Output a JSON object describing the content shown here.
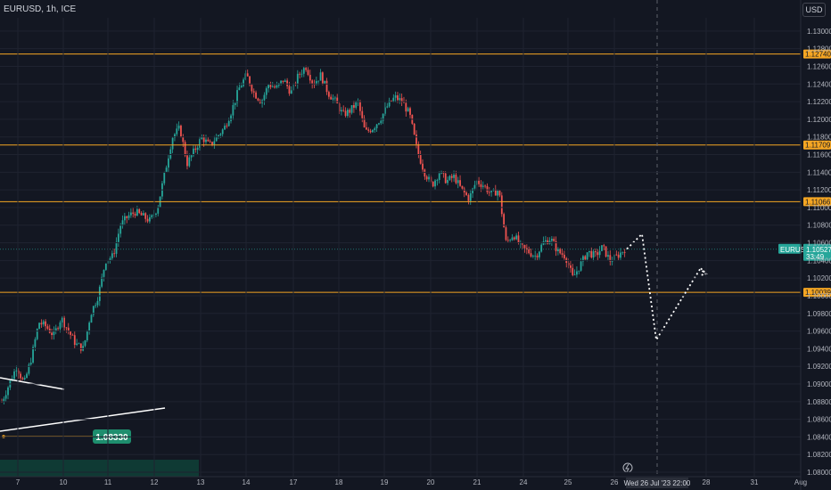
{
  "header": {
    "symbol_title": "EURUSD, 1h, ICE",
    "currency": "USD"
  },
  "chart_data": {
    "type": "candlestick",
    "symbol": "EURUSD",
    "ylim": [
      1.0795,
      1.1315
    ],
    "y_ticks": [
      "1.13000",
      "1.12800",
      "1.12600",
      "1.12400",
      "1.12200",
      "1.12000",
      "1.11800",
      "1.11600",
      "1.11400",
      "1.11200",
      "1.11000",
      "1.10800",
      "1.10600",
      "1.10400",
      "1.10200",
      "1.10000",
      "1.09800",
      "1.09600",
      "1.09400",
      "1.09200",
      "1.09000",
      "1.08800",
      "1.08600",
      "1.08400",
      "1.08200",
      "1.08000"
    ],
    "x_ticks": [
      "7",
      "10",
      "11",
      "12",
      "13",
      "14",
      "17",
      "18",
      "19",
      "20",
      "21",
      "24",
      "25",
      "26",
      "28",
      "31",
      "Aug"
    ],
    "price_path": [
      [
        1.088,
        1.09,
        1.092,
        1.09,
        1.093,
        1.097,
        1.0965,
        1.0955,
        1.0975,
        1.096,
        1.0945,
        1.094,
        1.098,
        1.1,
        1.104,
        1.1045,
        1.108,
        1.109,
        1.1095,
        1.109,
        1.1085,
        1.11,
        1.114,
        1.118,
        1.119,
        1.115,
        1.1165,
        1.118,
        1.117,
        1.118,
        1.119,
        1.121,
        1.1235,
        1.125,
        1.123,
        1.122,
        1.124,
        1.1235,
        1.1245,
        1.123,
        1.125,
        1.126,
        1.124,
        1.125,
        1.123,
        1.122,
        1.1205,
        1.121,
        1.122,
        1.1185,
        1.119,
        1.12,
        1.1215,
        1.1225,
        1.122,
        1.1205,
        1.1165,
        1.114,
        1.1125,
        1.114,
        1.113,
        1.1135,
        1.112,
        1.111,
        1.113,
        1.1125,
        1.1115,
        1.112,
        1.106,
        1.107,
        1.1055,
        1.105,
        1.1045,
        1.106,
        1.1065,
        1.105,
        1.1045,
        1.102,
        1.1035,
        1.105,
        1.1045,
        1.1055,
        1.104,
        1.1045,
        1.1053
      ]
    ],
    "horizontal_levels": [
      {
        "value": "1.12740",
        "color": "#f5a623"
      },
      {
        "value": "1.11709",
        "color": "#f5a623"
      },
      {
        "value": "1.11066",
        "color": "#f5a623"
      },
      {
        "value": "1.10039",
        "color": "#f5a623"
      }
    ],
    "current_price": {
      "symbol": "EURUSD",
      "value": "1.10527",
      "countdown": "33:49",
      "color": "#26a69a"
    },
    "projection_path": [
      1.1053,
      1.107,
      1.095,
      1.103,
      1.1025
    ],
    "marker_label": "1.08330",
    "crosshair_label": "Wed 26 Jul '23   22:00",
    "colors": {
      "up": "#26a69a",
      "down": "#ef5350",
      "grid": "#1f2330",
      "background": "#131722"
    }
  }
}
